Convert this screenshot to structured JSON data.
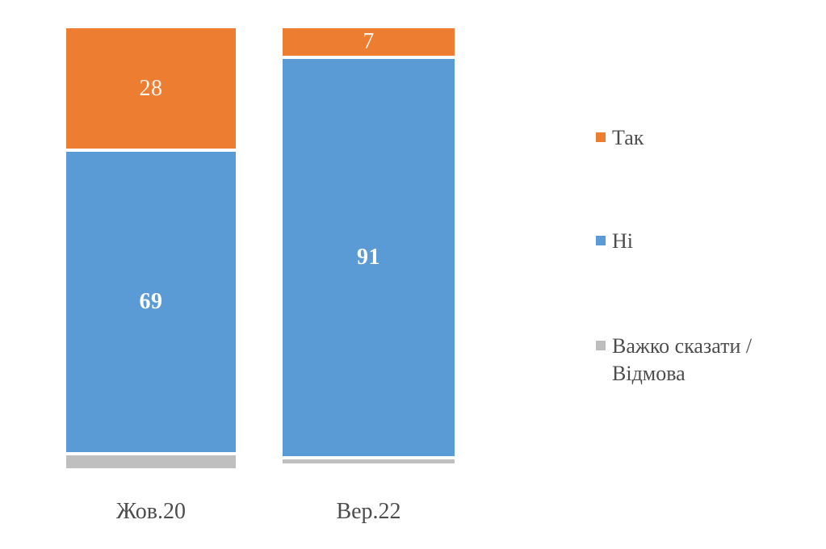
{
  "page": {
    "background": "#FFFFFF",
    "text_color": "#4D4D4D"
  },
  "chart_data": {
    "type": "bar",
    "variant": "stacked-column-100",
    "title": "",
    "xlabel": "",
    "ylabel": "",
    "ylim": [
      0,
      100
    ],
    "grid": false,
    "legend_position": "right",
    "categories": [
      "Жов.20",
      "Вер.22"
    ],
    "series": [
      {
        "name": "Так",
        "color": "#ED7D31",
        "values": [
          28,
          7
        ],
        "data_labels": [
          "28",
          "7"
        ],
        "label_color": "#FBF5EC",
        "label_weight": "normal"
      },
      {
        "name": "Ні",
        "color": "#5B9BD5",
        "values": [
          69,
          91
        ],
        "data_labels": [
          "69",
          "91"
        ],
        "label_color": "#FFFFFF",
        "label_weight": "bold"
      },
      {
        "name": "Важко сказати / Відмова",
        "color": "#BFBFBF",
        "values": [
          3,
          1
        ],
        "data_labels": [
          "",
          ""
        ],
        "label_color": "#FFFFFF",
        "label_weight": "normal"
      }
    ]
  },
  "legend": {
    "items": [
      {
        "label": "Так",
        "color": "#ED7D31"
      },
      {
        "label": "Ні",
        "color": "#5B9BD5"
      },
      {
        "label": "Важко сказати / Відмова",
        "color": "#BFBFBF"
      }
    ]
  },
  "axis": {
    "category_labels": [
      "Жов.20",
      "Вер.22"
    ]
  }
}
